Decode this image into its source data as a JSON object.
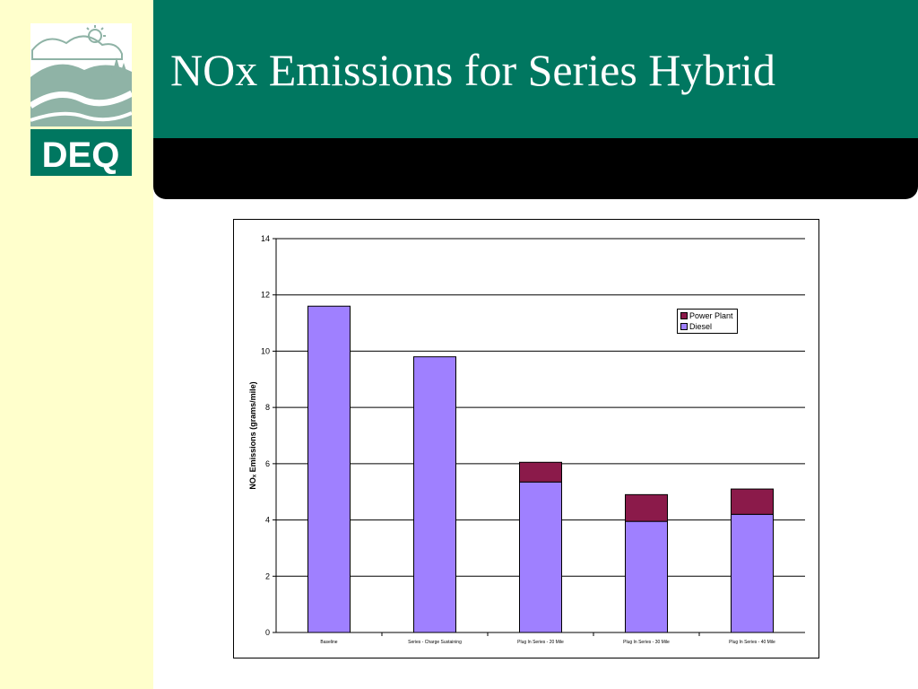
{
  "slide": {
    "title": "NOx Emissions for Series Hybrid",
    "logo_text": "DEQ",
    "colors": {
      "left_band": "#ffffcc",
      "title_band": "#007760",
      "logo_green": "#007760",
      "logo_sage": "#8fb3a6"
    }
  },
  "chart_data": {
    "type": "bar",
    "stacked": true,
    "categories": [
      "Baseline",
      "Series - Charge Sustaining",
      "Plug In Series - 20 Mile",
      "Plug In Series - 30 Mile",
      "Plug In Series - 40 Mile"
    ],
    "series": [
      {
        "name": "Diesel",
        "color": "#9f80ff",
        "values": [
          11.6,
          9.8,
          5.35,
          3.95,
          4.2
        ]
      },
      {
        "name": "Power Plant",
        "color": "#8b1a4a",
        "values": [
          0,
          0,
          0.7,
          0.95,
          0.9
        ]
      }
    ],
    "ylabel": "NOₓ Emissions (grams/mile)",
    "ylim": [
      0,
      14
    ],
    "yticks": [
      0,
      2,
      4,
      6,
      8,
      10,
      12,
      14
    ],
    "grid": true,
    "legend": {
      "position": "top-right",
      "order": [
        "Power Plant",
        "Diesel"
      ]
    }
  }
}
